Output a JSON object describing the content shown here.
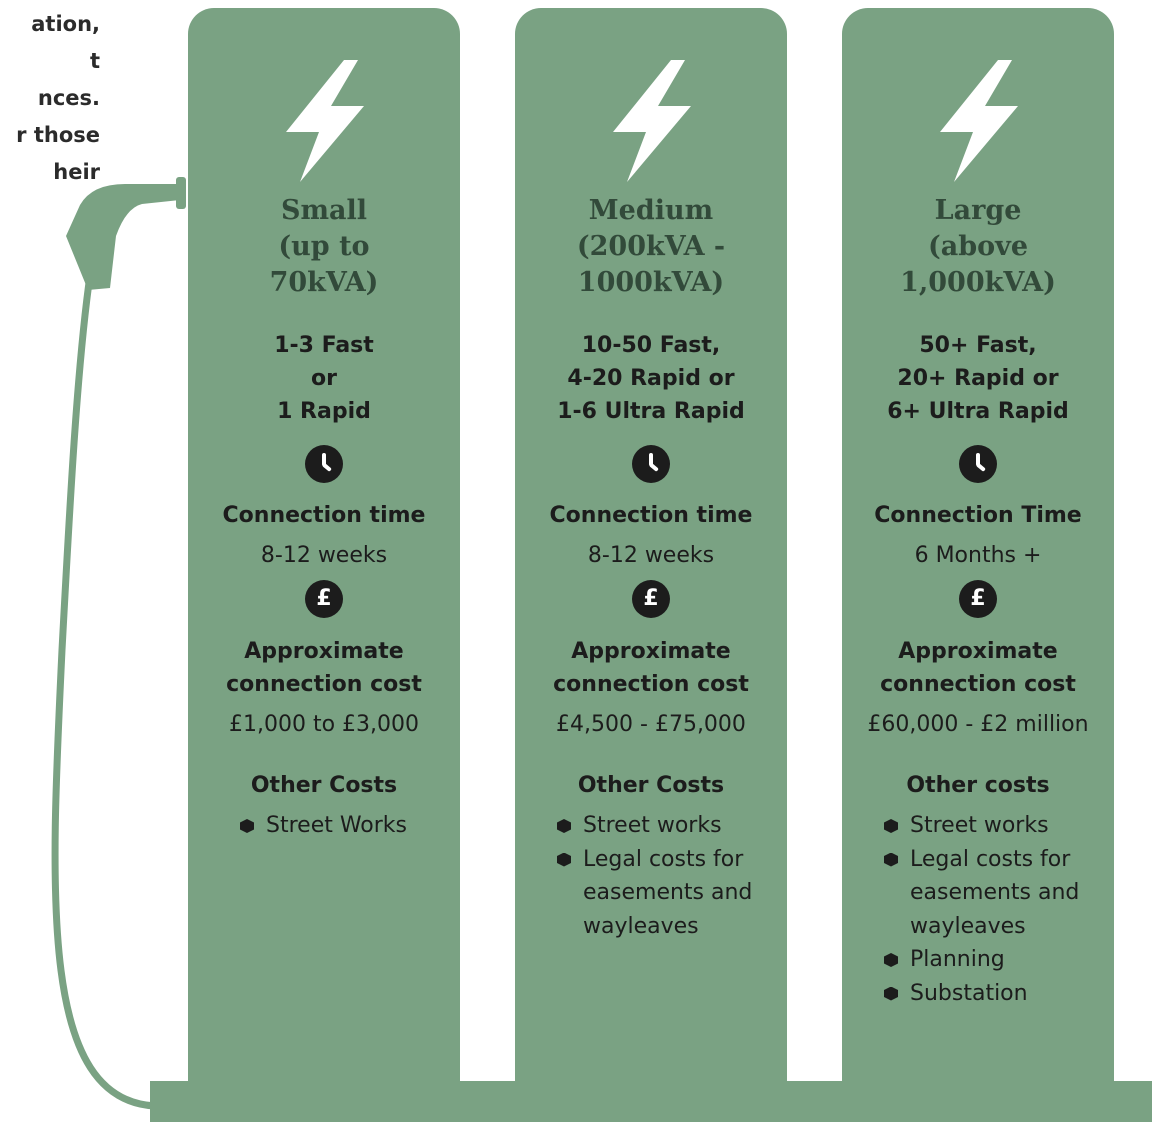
{
  "intro": [
    "ation,",
    "t",
    "nces.",
    "r those",
    "heir"
  ],
  "columns": [
    {
      "title": [
        "Small",
        "(up to",
        "70kVA)"
      ],
      "chargers": [
        "1-3 Fast",
        "or",
        "1 Rapid"
      ],
      "time_label": "Connection time",
      "time_value": "8-12 weeks",
      "cost_label": [
        "Approximate",
        "connection cost"
      ],
      "cost_value": "£1,000 to £3,000",
      "other_label": "Other Costs",
      "bullets": [
        [
          "Street Works"
        ]
      ]
    },
    {
      "title": [
        "Medium",
        "(200kVA -",
        "1000kVA)"
      ],
      "chargers": [
        "10-50 Fast,",
        "4-20 Rapid or",
        "1-6 Ultra Rapid"
      ],
      "time_label": "Connection time",
      "time_value": "8-12 weeks",
      "cost_label": [
        "Approximate",
        "connection cost"
      ],
      "cost_value": "£4,500 - £75,000",
      "other_label": "Other Costs",
      "bullets": [
        [
          "Street works"
        ],
        [
          "Legal costs for",
          "easements and",
          "wayleaves"
        ]
      ]
    },
    {
      "title": [
        "Large",
        "(above",
        "1,000kVA)"
      ],
      "chargers": [
        "50+ Fast,",
        "20+ Rapid or",
        "6+ Ultra Rapid"
      ],
      "time_label": "Connection Time",
      "time_value": "6 Months +",
      "cost_label": [
        "Approximate",
        "connection cost"
      ],
      "cost_value": "£60,000 - £2 million",
      "other_label": "Other costs",
      "bullets": [
        [
          "Street works"
        ],
        [
          "Legal costs for",
          "easements and",
          "wayleaves"
        ],
        [
          "Planning"
        ],
        [
          "Substation"
        ]
      ]
    }
  ],
  "icons": {
    "bolt": "lightning-bolt-icon",
    "clock": "clock-icon",
    "pound": "pound-icon",
    "bullet": "hexagon-bullet-icon",
    "plug": "charging-plug-icon"
  },
  "colors": {
    "panel": "#7aa283",
    "title": "#324a3a",
    "text": "#1c1c1c",
    "icon_bg": "#1c1c1c",
    "bolt": "#ffffff"
  }
}
